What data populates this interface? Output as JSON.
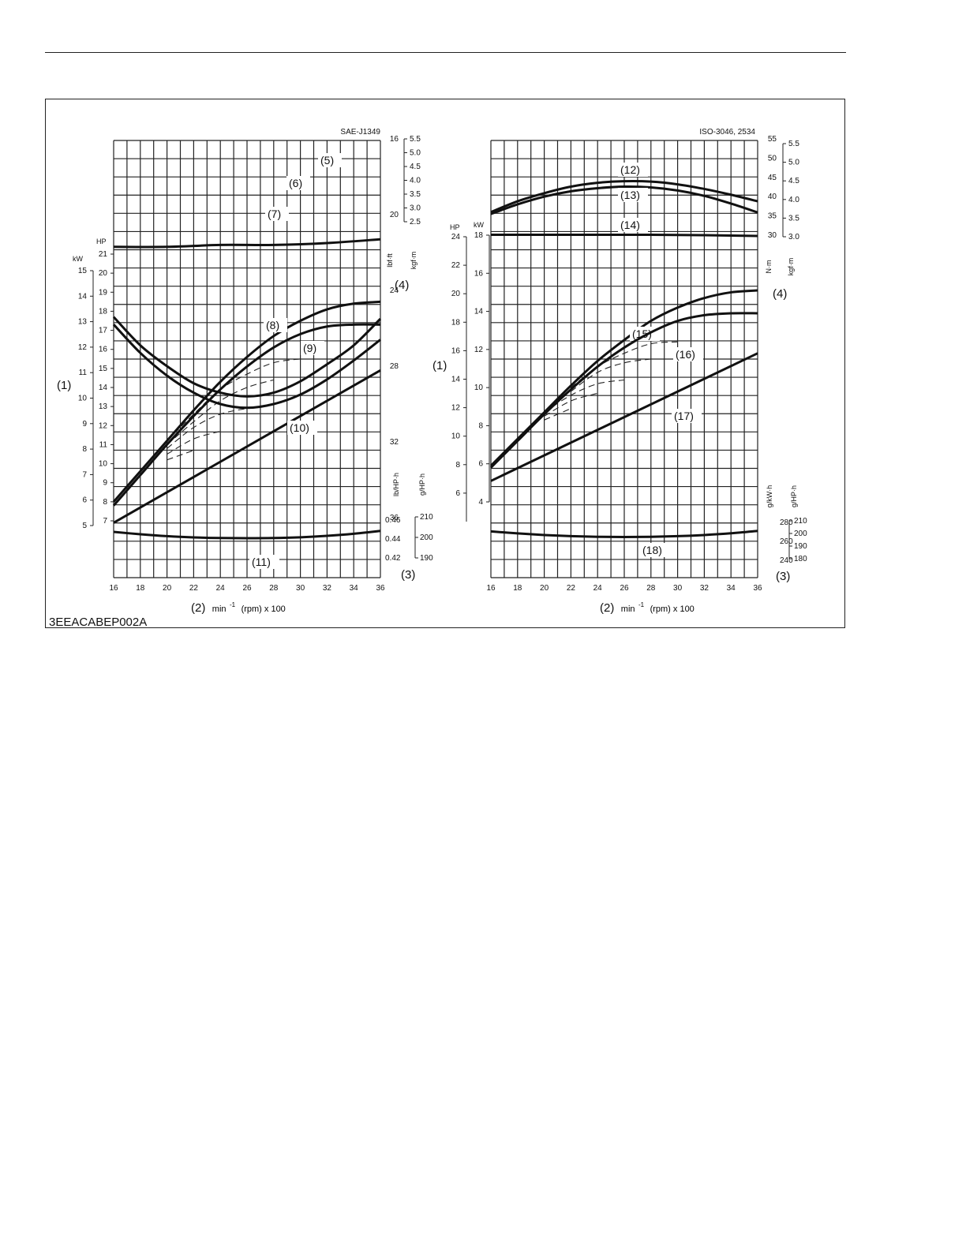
{
  "figure_code": "3EEACABEP002A",
  "callouts": {
    "power": "(1)",
    "speed": "(2)",
    "fuel": "(3)",
    "torque": "(4)"
  },
  "x_axis_unit": "min",
  "x_axis_exp": "-1",
  "x_axis_suffix": "(rpm) x 100",
  "chart_data": [
    {
      "type": "line",
      "title": "SAE-J1349",
      "x_ticks": [
        16,
        18,
        20,
        22,
        24,
        26,
        28,
        30,
        32,
        34,
        36
      ],
      "xlim": [
        16,
        36
      ],
      "torque_axes": {
        "primary_unit": "lbf·ft",
        "primary_ticks": [
          16,
          20,
          24,
          28,
          32,
          36
        ],
        "secondary_unit": "kgf·m",
        "secondary_ticks": [
          2.5,
          3.0,
          3.5,
          4.0,
          4.5,
          5.0,
          5.5
        ]
      },
      "power_axes": {
        "hp_unit": "HP",
        "hp_ticks": [
          7,
          8,
          9,
          10,
          11,
          12,
          13,
          14,
          15,
          16,
          17,
          18,
          19,
          20,
          21
        ],
        "kw_unit": "kW",
        "kw_ticks": [
          5,
          6,
          7,
          8,
          9,
          10,
          11,
          12,
          13,
          14,
          15
        ]
      },
      "fuel_axes": {
        "primary_unit": "lb/HP·h",
        "primary_ticks": [
          0.42,
          0.44,
          0.46
        ],
        "secondary_unit": "g/HP·h",
        "secondary_ticks": [
          190,
          200,
          210
        ]
      },
      "series": [
        {
          "name": "(5)",
          "group": "torque",
          "x": [
            16,
            18,
            20,
            22,
            24,
            26,
            28,
            30,
            32,
            34,
            36
          ],
          "y": [
            25.8,
            27.3,
            28.5,
            29.4,
            30.0,
            30.2,
            30.0,
            29.5,
            28.7,
            27.7,
            26.6
          ]
        },
        {
          "name": "(6)",
          "group": "torque",
          "x": [
            16,
            18,
            20,
            22,
            24,
            26,
            28,
            30,
            32,
            34,
            36
          ],
          "y": [
            25.4,
            26.9,
            28.0,
            28.9,
            29.4,
            29.6,
            29.4,
            28.8,
            27.9,
            26.9,
            25.5
          ]
        },
        {
          "name": "(7)",
          "group": "torque",
          "x": [
            16,
            20,
            24,
            28,
            32,
            36
          ],
          "y": [
            21.7,
            21.7,
            21.6,
            21.6,
            21.5,
            21.3
          ]
        },
        {
          "name": "(8)",
          "group": "power_hp",
          "x": [
            16,
            18,
            20,
            22,
            24,
            26,
            28,
            30,
            32,
            34,
            36
          ],
          "y": [
            8.0,
            9.6,
            11.2,
            12.8,
            14.3,
            15.6,
            16.7,
            17.5,
            18.1,
            18.4,
            18.5
          ]
        },
        {
          "name": "(9)",
          "group": "power_hp",
          "x": [
            16,
            18,
            20,
            22,
            24,
            26,
            28,
            30,
            32,
            34,
            36
          ],
          "y": [
            7.8,
            9.4,
            11.0,
            12.5,
            13.9,
            15.1,
            16.1,
            16.8,
            17.2,
            17.3,
            17.3
          ]
        },
        {
          "name": "(10)",
          "group": "power_hp",
          "x": [
            16,
            36
          ],
          "y": [
            6.9,
            14.9
          ]
        },
        {
          "name": "(11)",
          "group": "fuel",
          "x": [
            16,
            18,
            20,
            22,
            24,
            26,
            28,
            30,
            32,
            34,
            36
          ],
          "y": [
            0.4475,
            0.445,
            0.443,
            0.4417,
            0.441,
            0.4408,
            0.441,
            0.4418,
            0.4433,
            0.4455,
            0.4485
          ]
        }
      ],
      "partial_load_series": [
        {
          "group": "power_hp",
          "x": [
            20,
            22,
            24,
            26,
            28,
            30
          ],
          "y": [
            11.2,
            12.6,
            13.9,
            14.7,
            15.3,
            15.5
          ]
        },
        {
          "group": "power_hp",
          "x": [
            20,
            22,
            24,
            26,
            28
          ],
          "y": [
            11.0,
            12.2,
            13.3,
            14.0,
            14.4
          ]
        },
        {
          "group": "power_hp",
          "x": [
            20,
            22,
            24,
            26
          ],
          "y": [
            10.8,
            11.9,
            12.6,
            12.9
          ]
        },
        {
          "group": "power_hp",
          "x": [
            20,
            22,
            24
          ],
          "y": [
            10.5,
            11.3,
            11.7
          ]
        },
        {
          "group": "power_hp",
          "x": [
            20,
            22
          ],
          "y": [
            10.2,
            10.7
          ]
        }
      ]
    },
    {
      "type": "line",
      "title": "ISO-3046, 2534",
      "x_ticks": [
        16,
        18,
        20,
        22,
        24,
        26,
        28,
        30,
        32,
        34,
        36
      ],
      "xlim": [
        16,
        36
      ],
      "torque_axes": {
        "primary_unit": "N·m",
        "primary_ticks": [
          30,
          35,
          40,
          45,
          50,
          55
        ],
        "secondary_unit": "kgf·m",
        "secondary_ticks": [
          3.0,
          3.5,
          4.0,
          4.5,
          5.0,
          5.5
        ]
      },
      "power_axes": {
        "hp_unit": "HP",
        "hp_ticks": [
          6,
          8,
          10,
          12,
          14,
          16,
          18,
          20,
          22,
          24
        ],
        "kw_unit": "kW",
        "kw_ticks": [
          4,
          6,
          8,
          10,
          12,
          14,
          16,
          18
        ]
      },
      "fuel_axes": {
        "primary_unit": "g/kW·h",
        "primary_ticks": [
          240,
          260,
          280
        ],
        "secondary_unit": "g/HP·h",
        "secondary_ticks": [
          180,
          190,
          200,
          210
        ]
      },
      "series": [
        {
          "name": "(12)",
          "group": "torque",
          "x": [
            16,
            18,
            20,
            22,
            24,
            26,
            28,
            30,
            32,
            34,
            36
          ],
          "y": [
            36.0,
            38.8,
            40.9,
            42.6,
            43.6,
            44.0,
            43.9,
            43.2,
            42.0,
            40.5,
            38.8
          ]
        },
        {
          "name": "(13)",
          "group": "torque",
          "x": [
            16,
            18,
            20,
            22,
            24,
            26,
            28,
            30,
            32,
            34,
            36
          ],
          "y": [
            35.5,
            38.0,
            40.0,
            41.4,
            42.2,
            42.6,
            42.4,
            41.6,
            40.2,
            38.2,
            35.9
          ]
        },
        {
          "name": "(14)",
          "group": "torque",
          "x": [
            16,
            20,
            24,
            28,
            32,
            36
          ],
          "y": [
            30.1,
            30.1,
            30.1,
            30.1,
            30.0,
            29.8
          ]
        },
        {
          "name": "(15)",
          "group": "power_kw",
          "x": [
            16,
            18,
            20,
            22,
            24,
            26,
            28,
            30,
            32,
            34,
            36
          ],
          "y": [
            5.9,
            7.3,
            8.7,
            10.1,
            11.4,
            12.5,
            13.5,
            14.2,
            14.7,
            15.0,
            15.1
          ]
        },
        {
          "name": "(16)",
          "group": "power_kw",
          "x": [
            16,
            18,
            20,
            22,
            24,
            26,
            28,
            30,
            32,
            34,
            36
          ],
          "y": [
            5.8,
            7.2,
            8.6,
            9.9,
            11.1,
            12.1,
            12.9,
            13.5,
            13.8,
            13.9,
            13.9
          ]
        },
        {
          "name": "(17)",
          "group": "power_kw",
          "x": [
            16,
            36
          ],
          "y": [
            5.1,
            11.8
          ]
        },
        {
          "name": "(18)",
          "group": "fuel",
          "x": [
            16,
            18,
            20,
            22,
            24,
            26,
            28,
            30,
            32,
            34,
            36
          ],
          "y": [
            270.5,
            268.4,
            266.7,
            265.5,
            264.8,
            264.6,
            264.8,
            265.5,
            266.7,
            268.5,
            271.0
          ]
        }
      ],
      "partial_load_series": [
        {
          "group": "power_kw",
          "x": [
            22,
            24,
            26,
            28,
            30
          ],
          "y": [
            10.0,
            11.1,
            11.8,
            12.3,
            12.4
          ]
        },
        {
          "group": "power_kw",
          "x": [
            22,
            24,
            26,
            28
          ],
          "y": [
            9.8,
            10.8,
            11.3,
            11.5
          ]
        },
        {
          "group": "power_kw",
          "x": [
            20,
            22,
            24,
            26
          ],
          "y": [
            8.7,
            9.6,
            10.2,
            10.4
          ]
        },
        {
          "group": "power_kw",
          "x": [
            20,
            22,
            24
          ],
          "y": [
            8.5,
            9.3,
            9.7
          ]
        },
        {
          "group": "power_kw",
          "x": [
            20,
            22
          ],
          "y": [
            8.3,
            8.9
          ]
        }
      ]
    }
  ]
}
